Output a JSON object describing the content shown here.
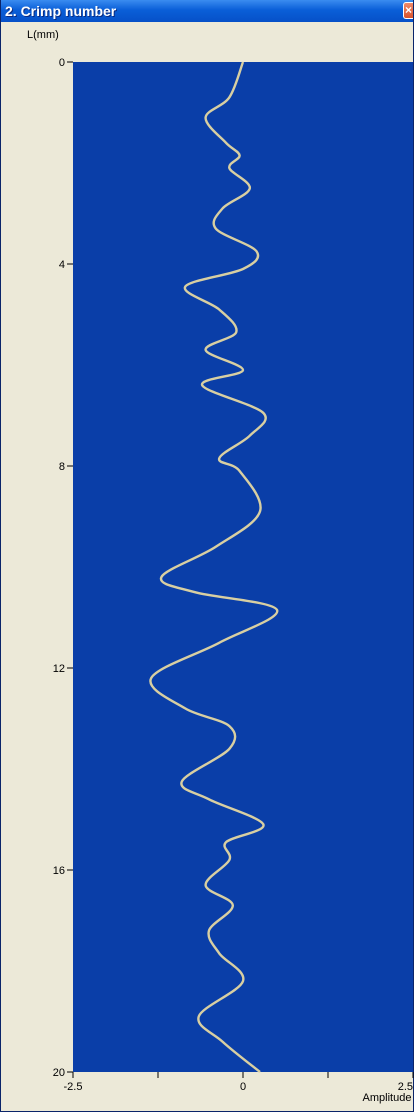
{
  "window": {
    "title": "2. Crimp number",
    "close_icon": "close-icon"
  },
  "chart_data": {
    "type": "line",
    "orientation": "vertical",
    "title": "",
    "xlabel": "Amplitude",
    "ylabel": "L(mm)",
    "xlim": [
      -2.5,
      2.5
    ],
    "ylim": [
      0,
      20
    ],
    "y_inverted": true,
    "x_ticks": [
      "-2.5",
      "0",
      "2.5"
    ],
    "y_ticks": [
      "0",
      "4",
      "8",
      "12",
      "16",
      "20"
    ],
    "grid": false,
    "legend": "none",
    "colors": {
      "plot_background": "#0a3ea8",
      "line": "#d8cfa2",
      "frame": "#ece9d8"
    },
    "series": [
      {
        "x": [
          0.0,
          -0.2,
          -0.55,
          -0.25,
          -0.05,
          -0.2,
          0.1,
          -0.3,
          -0.4,
          0.2,
          0.0,
          -0.85,
          -0.35,
          -0.1,
          -0.55,
          0.0,
          -0.6,
          0.3,
          0.1,
          -0.35,
          -0.05,
          0.25,
          -0.4,
          -1.2,
          -0.7,
          0.5,
          -0.35,
          -1.35,
          -0.85,
          -0.2,
          -0.2,
          -0.9,
          -0.5,
          0.3,
          -0.25,
          -0.2,
          -0.55,
          -0.15,
          -0.5,
          -0.35,
          0.0,
          -0.65,
          -0.3,
          0.25
        ],
        "y": [
          0.0,
          0.7,
          1.1,
          1.6,
          1.85,
          2.1,
          2.5,
          2.9,
          3.3,
          3.75,
          4.1,
          4.45,
          4.9,
          5.35,
          5.7,
          6.1,
          6.4,
          6.95,
          7.4,
          7.85,
          8.1,
          8.9,
          9.6,
          10.2,
          10.5,
          10.85,
          11.5,
          12.2,
          12.8,
          13.15,
          13.6,
          14.25,
          14.6,
          15.1,
          15.45,
          15.8,
          16.3,
          16.7,
          17.2,
          17.65,
          18.2,
          18.9,
          19.4,
          20.0
        ]
      }
    ]
  }
}
